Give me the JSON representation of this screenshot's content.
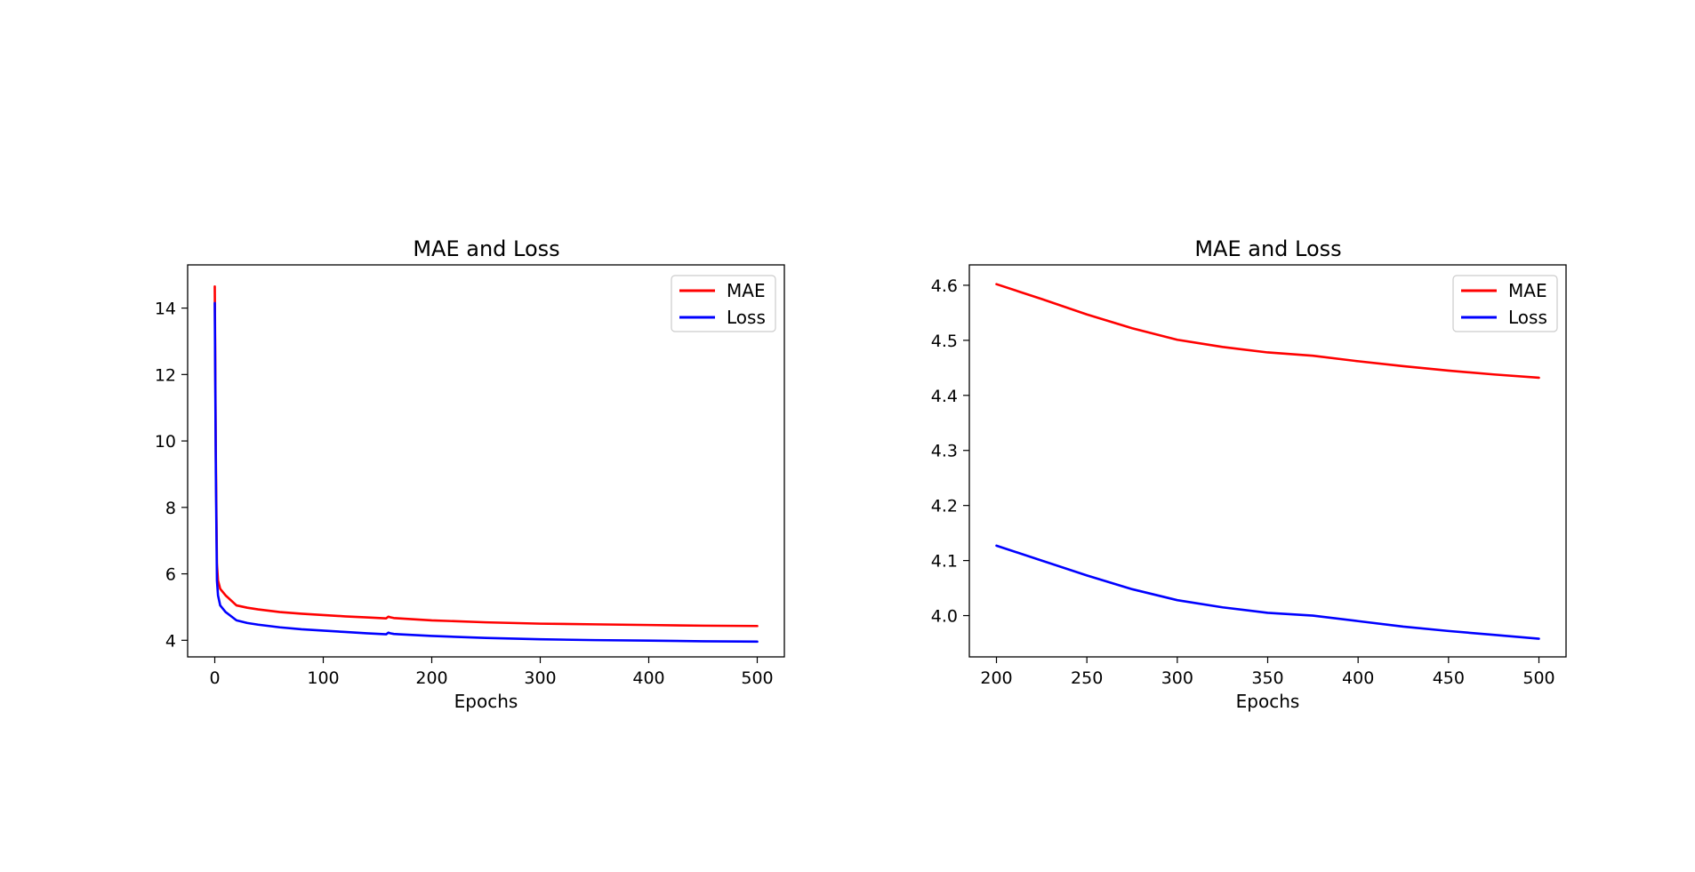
{
  "chart_data": [
    {
      "type": "line",
      "title": "MAE and Loss",
      "xlabel": "Epochs",
      "ylabel": "",
      "xlim": [
        -25,
        525
      ],
      "ylim": [
        3.5,
        15.3
      ],
      "xticks": [
        0,
        100,
        200,
        300,
        400,
        500
      ],
      "yticks": [
        4,
        6,
        8,
        10,
        12,
        14
      ],
      "xtick_labels": [
        "0",
        "100",
        "200",
        "300",
        "400",
        "500"
      ],
      "ytick_labels": [
        "4",
        "6",
        "8",
        "10",
        "12",
        "14"
      ],
      "grid": false,
      "legend": "top-right",
      "series": [
        {
          "name": "MAE",
          "color": "#ff0000",
          "x": [
            0,
            1,
            2,
            3,
            5,
            10,
            20,
            30,
            40,
            60,
            80,
            100,
            120,
            140,
            158,
            160,
            162,
            165,
            170,
            200,
            250,
            300,
            350,
            400,
            450,
            500
          ],
          "y": [
            14.65,
            9.5,
            6.3,
            5.8,
            5.55,
            5.35,
            5.05,
            4.98,
            4.93,
            4.85,
            4.8,
            4.76,
            4.72,
            4.69,
            4.66,
            4.71,
            4.69,
            4.67,
            4.66,
            4.6,
            4.54,
            4.5,
            4.48,
            4.46,
            4.44,
            4.43
          ]
        },
        {
          "name": "Loss",
          "color": "#0000ff",
          "x": [
            0,
            1,
            2,
            3,
            5,
            10,
            20,
            30,
            40,
            60,
            80,
            100,
            120,
            140,
            158,
            160,
            162,
            165,
            170,
            200,
            250,
            300,
            350,
            400,
            450,
            500
          ],
          "y": [
            14.15,
            9.0,
            5.8,
            5.35,
            5.05,
            4.85,
            4.6,
            4.52,
            4.47,
            4.39,
            4.33,
            4.29,
            4.25,
            4.21,
            4.18,
            4.23,
            4.21,
            4.19,
            4.18,
            4.13,
            4.07,
            4.03,
            4.005,
            3.99,
            3.97,
            3.96
          ]
        }
      ]
    },
    {
      "type": "line",
      "title": "MAE and Loss",
      "xlabel": "Epochs",
      "ylabel": "",
      "xlim": [
        185,
        515
      ],
      "ylim": [
        3.925,
        4.637
      ],
      "xticks": [
        200,
        250,
        300,
        350,
        400,
        450,
        500
      ],
      "yticks": [
        4.0,
        4.1,
        4.2,
        4.3,
        4.4,
        4.5,
        4.6
      ],
      "xtick_labels": [
        "200",
        "250",
        "300",
        "350",
        "400",
        "450",
        "500"
      ],
      "ytick_labels": [
        "4.0",
        "4.1",
        "4.2",
        "4.3",
        "4.4",
        "4.5",
        "4.6"
      ],
      "grid": false,
      "legend": "top-right",
      "series": [
        {
          "name": "MAE",
          "color": "#ff0000",
          "x": [
            200,
            225,
            250,
            275,
            300,
            325,
            350,
            375,
            400,
            425,
            450,
            475,
            500
          ],
          "y": [
            4.602,
            4.575,
            4.547,
            4.522,
            4.501,
            4.488,
            4.478,
            4.472,
            4.462,
            4.453,
            4.445,
            4.438,
            4.432
          ]
        },
        {
          "name": "Loss",
          "color": "#0000ff",
          "x": [
            200,
            225,
            250,
            275,
            300,
            325,
            350,
            375,
            400,
            425,
            450,
            475,
            500
          ],
          "y": [
            4.127,
            4.1,
            4.073,
            4.048,
            4.028,
            4.015,
            4.005,
            4.0,
            3.99,
            3.98,
            3.972,
            3.965,
            3.958
          ]
        }
      ]
    }
  ]
}
